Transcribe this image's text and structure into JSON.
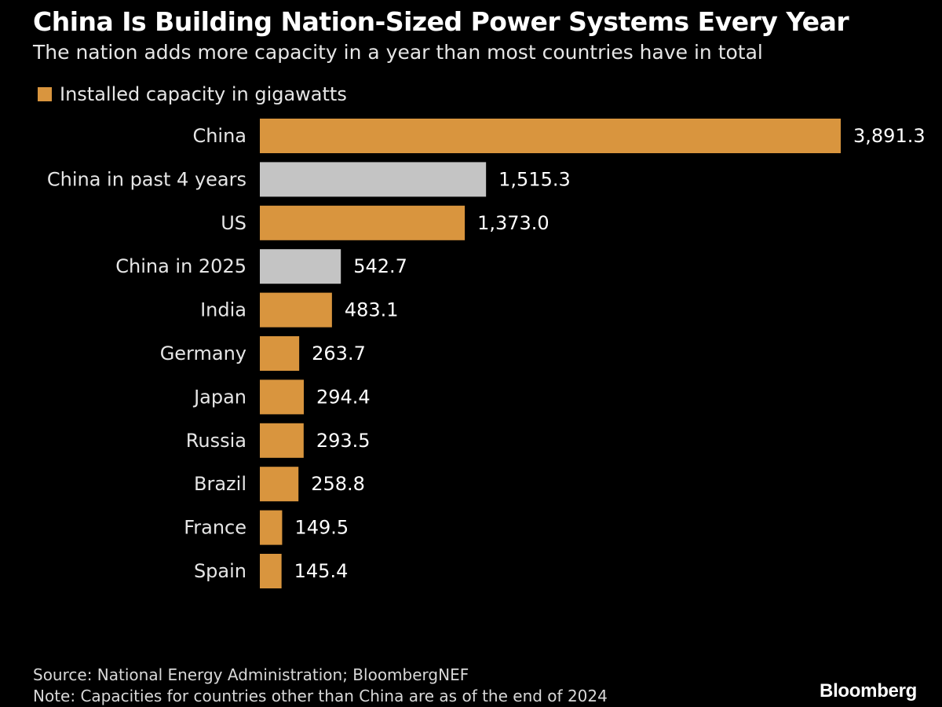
{
  "header": {
    "title": "China Is Building Nation-Sized Power Systems Every Year",
    "subtitle": "The nation adds more capacity in a year than most countries have in total"
  },
  "legend": {
    "label": "Installed capacity in gigawatts",
    "color": "#d9953e"
  },
  "colors": {
    "background": "#000000",
    "country_bar": "#d9953e",
    "china_period_bar": "#c4c4c4",
    "text": "#ffffff"
  },
  "chart_data": {
    "type": "bar",
    "orientation": "horizontal",
    "categories": [
      "China",
      "China in past 4 years",
      "US",
      "China in 2025",
      "India",
      "Germany",
      "Japan",
      "Russia",
      "Brazil",
      "France",
      "Spain"
    ],
    "values": [
      3891.3,
      1515.3,
      1373.0,
      542.7,
      483.1,
      263.7,
      294.4,
      293.5,
      258.8,
      149.5,
      145.4
    ],
    "value_labels": [
      "3,891.3",
      "1,515.3",
      "1,373.0",
      "542.7",
      "483.1",
      "263.7",
      "294.4",
      "293.5",
      "258.8",
      "149.5",
      "145.4"
    ],
    "bar_colors": [
      "#d9953e",
      "#c4c4c4",
      "#d9953e",
      "#c4c4c4",
      "#d9953e",
      "#d9953e",
      "#d9953e",
      "#d9953e",
      "#d9953e",
      "#d9953e",
      "#d9953e"
    ],
    "series": [
      {
        "name": "Installed capacity in gigawatts"
      }
    ],
    "xlim": [
      0,
      3891.3
    ],
    "grid": false,
    "legend_position": "top-left"
  },
  "footer": {
    "source": "Source: National Energy Administration; BloombergNEF",
    "note": "Note: Capacities for countries other than China are as of the end of 2024",
    "logo": "Bloomberg"
  }
}
